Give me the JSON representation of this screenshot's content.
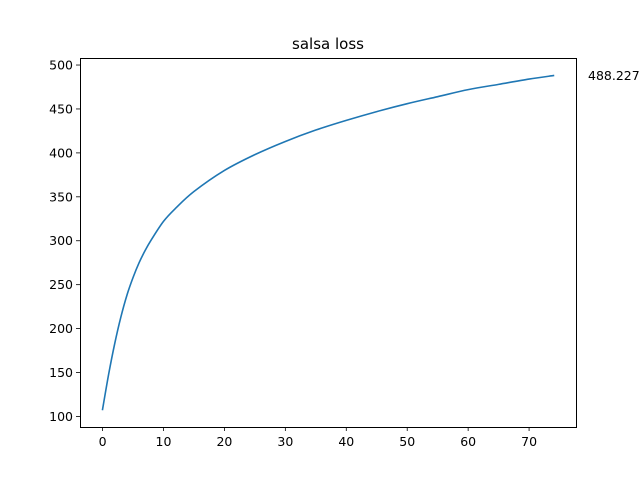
{
  "chart_data": {
    "type": "line",
    "title": "salsa loss",
    "xlabel": "",
    "ylabel": "",
    "xlim": [
      -3.7,
      77.7
    ],
    "ylim": [
      88.0,
      508.0
    ],
    "xticks": [
      0,
      10,
      20,
      30,
      40,
      50,
      60,
      70
    ],
    "yticks": [
      100,
      150,
      200,
      250,
      300,
      350,
      400,
      450,
      500
    ],
    "grid": false,
    "series": [
      {
        "name": "salsa loss",
        "color": "#1f77b4",
        "x": [
          0,
          1,
          2,
          3,
          4,
          5,
          6,
          7,
          8,
          10,
          12,
          15,
          20,
          25,
          30,
          35,
          40,
          45,
          50,
          55,
          60,
          65,
          70,
          74
        ],
        "y": [
          108,
          148,
          183,
          213,
          238,
          258,
          275,
          289,
          301,
          322,
          337,
          356,
          380,
          398,
          413,
          426,
          437,
          447,
          456,
          464,
          472,
          478,
          484,
          488
        ]
      }
    ],
    "annotation": {
      "text": "488.227",
      "x": 74,
      "y": 488.227
    }
  }
}
